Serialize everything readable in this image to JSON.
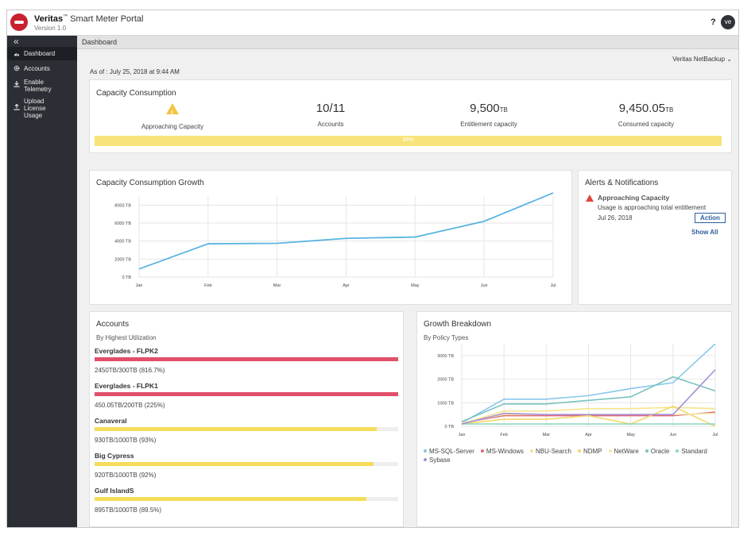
{
  "app": {
    "brand": "Veritas",
    "brand_tm": "™",
    "product": "Smart Meter Portal",
    "version": "Version 1.0",
    "help": "?",
    "avatar": "ve"
  },
  "sidebar": {
    "collapse": "«",
    "items": [
      {
        "label": "Dashboard",
        "icon": "dashboard-icon"
      },
      {
        "label": "Accounts",
        "icon": "gear-icon"
      },
      {
        "label": "Enable\nTelemetry",
        "icon": "download-icon"
      },
      {
        "label": "Upload\nLicense\nUsage",
        "icon": "upload-icon"
      }
    ]
  },
  "breadcrumb": "Dashboard",
  "product_selector": "Veritas NetBackup",
  "as_of": "As of : July 25, 2018 at 9:44 AM",
  "capacity": {
    "title": "Capacity Consumption",
    "kpis": [
      {
        "value": "",
        "unit": "",
        "label": "Approaching Capacity",
        "icon": "warning-icon"
      },
      {
        "value": "10/11",
        "unit": "",
        "label": "Accounts"
      },
      {
        "value": "9,500",
        "unit": "TB",
        "label": "Entitlement capacity"
      },
      {
        "value": "9,450.05",
        "unit": "TB",
        "label": "Consumed capacity"
      }
    ],
    "bar_text": "99%",
    "bar_color": "#f8e37a"
  },
  "growth": {
    "title": "Capacity Consumption Growth"
  },
  "alerts": {
    "title": "Alerts & Notifications",
    "item_title": "Approaching Capacity",
    "item_message": "Usage is approaching total entitlement",
    "item_date": "Jul 26, 2018",
    "action_label": "Action",
    "show_all": "Show All"
  },
  "accounts": {
    "title": "Accounts",
    "subtitle": "By Highest Utilization",
    "items": [
      {
        "name": "Everglades - FLPK2",
        "value": "2450TB/300TB (816.7%)",
        "utilization": 1.0,
        "color": "#e05068"
      },
      {
        "name": "Everglades - FLPK1",
        "value": "450.05TB/200TB (225%)",
        "utilization": 1.0,
        "color": "#e05068"
      },
      {
        "name": "Canaveral",
        "value": "930TB/1000TB (93%)",
        "utilization": 0.93,
        "color": "#f5dc5a"
      },
      {
        "name": "Big Cypress",
        "value": "920TB/1000TB (92%)",
        "utilization": 0.92,
        "color": "#f5dc5a"
      },
      {
        "name": "Gulf IslandS",
        "value": "895TB/1000TB (89.5%)",
        "utilization": 0.895,
        "color": "#f5dc5a"
      }
    ]
  },
  "breakdown": {
    "title": "Growth Breakdown",
    "subtitle": "By Policy Types"
  },
  "chart_data": [
    {
      "type": "line",
      "title": "Capacity Consumption Growth",
      "x": [
        "Jan",
        "Feb",
        "Mar",
        "Apr",
        "May",
        "Jun",
        "Jul"
      ],
      "y_ticks": [
        "0 TB",
        "2000 TB",
        "4000 TB",
        "6000 TB",
        "8000 TB"
      ],
      "ylim": [
        0,
        9000
      ],
      "grid": true,
      "series": [
        {
          "values": [
            900,
            3700,
            3750,
            4300,
            4450,
            6200,
            9350
          ],
          "color": "#5ab4e0"
        }
      ]
    },
    {
      "type": "line",
      "title": "Growth Breakdown",
      "x": [
        "Jan",
        "Feb",
        "Mar",
        "Apr",
        "May",
        "Jun",
        "Jul"
      ],
      "y_ticks": [
        "0 TB",
        "1000 TB",
        "2000 TB",
        "3000 TB"
      ],
      "ylim": [
        0,
        3500
      ],
      "grid": true,
      "legend": "bottom",
      "series": [
        {
          "name": "MS-SQL-Server",
          "color": "#88c7ec",
          "values": [
            150,
            1150,
            1150,
            1300,
            1600,
            1850,
            3500
          ]
        },
        {
          "name": "MS-Windows",
          "color": "#e06a7a",
          "values": [
            150,
            450,
            450,
            450,
            450,
            450,
            600
          ]
        },
        {
          "name": "NBU-Search",
          "color": "#f6e58c",
          "values": [
            100,
            650,
            650,
            750,
            750,
            800,
            750
          ]
        },
        {
          "name": "NDMP",
          "color": "#f4d86a",
          "values": [
            100,
            300,
            300,
            450,
            100,
            850,
            0
          ]
        },
        {
          "name": "NetWare",
          "color": "#f6e9a8",
          "values": [
            150,
            500,
            500,
            500,
            500,
            500,
            550
          ]
        },
        {
          "name": "Oracle",
          "color": "#79c2c0",
          "values": [
            200,
            950,
            950,
            1100,
            1250,
            2100,
            1500
          ]
        },
        {
          "name": "Standard",
          "color": "#8fd6c2",
          "values": [
            100,
            100,
            100,
            100,
            100,
            100,
            100
          ]
        },
        {
          "name": "Sybase",
          "color": "#a48fd8",
          "values": [
            100,
            550,
            500,
            500,
            500,
            500,
            2400
          ]
        }
      ]
    }
  ]
}
